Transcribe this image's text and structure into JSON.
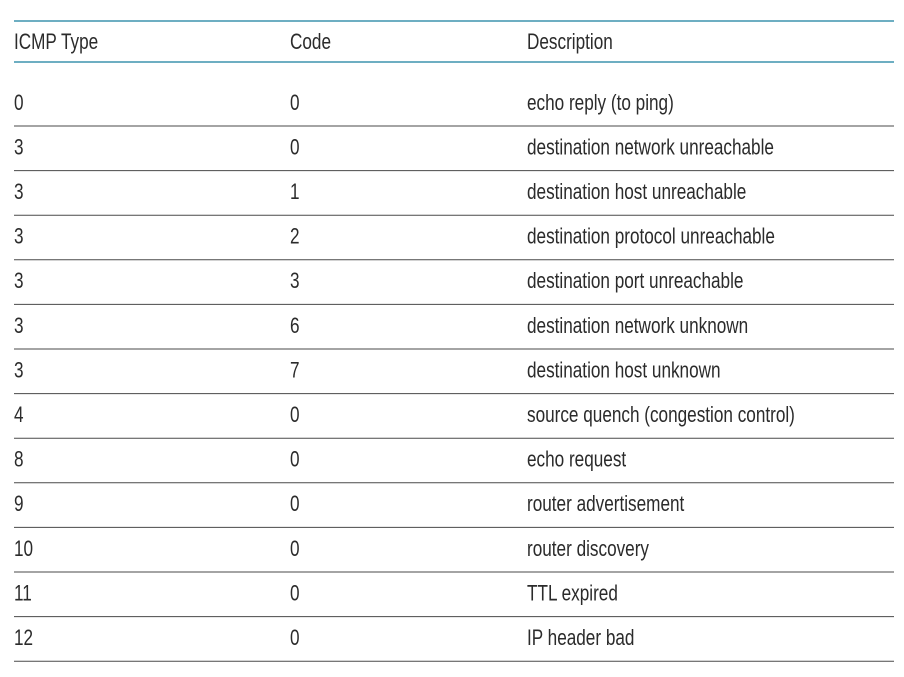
{
  "table": {
    "headers": [
      "ICMP Type",
      "Code",
      "Description"
    ],
    "rows": [
      [
        "0",
        "0",
        "echo reply (to ping)"
      ],
      [
        "3",
        "0",
        "destination network unreachable"
      ],
      [
        "3",
        "1",
        "destination host unreachable"
      ],
      [
        "3",
        "2",
        "destination protocol unreachable"
      ],
      [
        "3",
        "3",
        "destination port unreachable"
      ],
      [
        "3",
        "6",
        "destination network unknown"
      ],
      [
        "3",
        "7",
        "destination host unknown"
      ],
      [
        "4",
        "0",
        "source quench (congestion control)"
      ],
      [
        "8",
        "0",
        "echo request"
      ],
      [
        "9",
        "0",
        "router advertisement"
      ],
      [
        "10",
        "0",
        "router discovery"
      ],
      [
        "11",
        "0",
        "TTL expired"
      ],
      [
        "12",
        "0",
        "IP header bad"
      ]
    ]
  }
}
